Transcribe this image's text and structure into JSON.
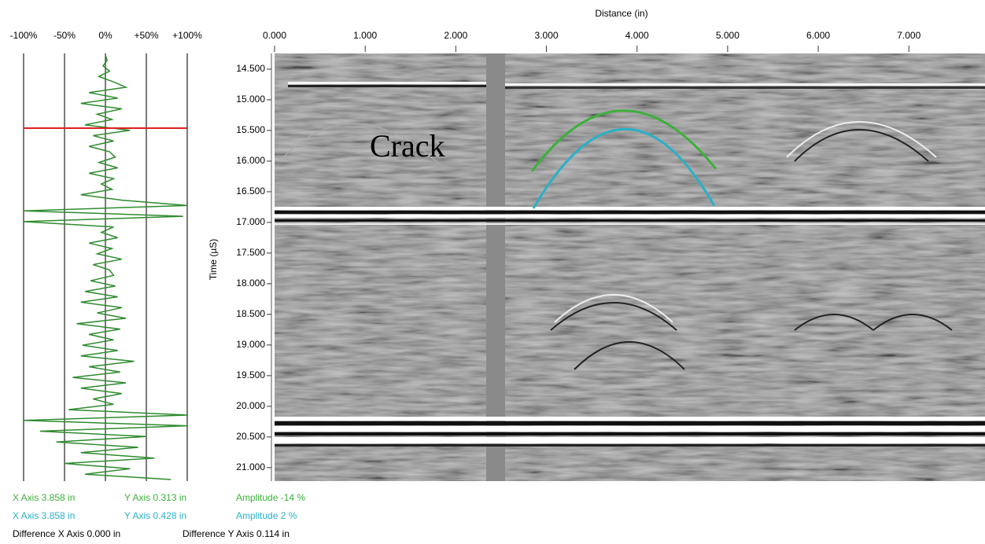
{
  "waveform": {
    "xticks": [
      {
        "value": -100,
        "label": "-100%"
      },
      {
        "value": -50,
        "label": "-50%"
      },
      {
        "value": 0,
        "label": "0%"
      },
      {
        "value": 50,
        "label": "+50%"
      },
      {
        "value": 100,
        "label": "+100%"
      }
    ],
    "xlim": [
      -100,
      100
    ],
    "color": "#2e8b2e",
    "values": [
      0,
      2,
      -3,
      5,
      -8,
      10,
      25,
      -20,
      15,
      -30,
      20,
      -10,
      8,
      -25,
      30,
      -15,
      10,
      -20,
      5,
      12,
      -8,
      15,
      -20,
      10,
      -5,
      8,
      -30,
      20,
      100,
      -100,
      95,
      -100,
      10,
      -5,
      15,
      -20,
      8,
      -10,
      20,
      -15,
      5,
      10,
      -18,
      12,
      -25,
      15,
      -30,
      20,
      -10,
      25,
      -35,
      18,
      -20,
      10,
      -28,
      15,
      -30,
      35,
      -20,
      18,
      -40,
      25,
      -30,
      20,
      -15,
      10,
      -45,
      100,
      -100,
      100,
      -80,
      50,
      -60,
      40,
      -30,
      60,
      -50,
      30,
      -25,
      80
    ]
  },
  "radargram": {
    "x_title": "Distance (in)",
    "y_title": "Time (µS)",
    "annotation": "Crack",
    "xlim": [
      0,
      7.84
    ],
    "ylim": [
      14.244,
      21.22
    ],
    "xticks": [
      {
        "value": 0,
        "label": "0.000"
      },
      {
        "value": 1,
        "label": "1.000"
      },
      {
        "value": 2,
        "label": "2.000"
      },
      {
        "value": 3,
        "label": "3.000"
      },
      {
        "value": 4,
        "label": "4.000"
      },
      {
        "value": 5,
        "label": "5.000"
      },
      {
        "value": 6,
        "label": "6.000"
      },
      {
        "value": 7,
        "label": "7.000"
      }
    ],
    "yticks": [
      {
        "value": 14.5,
        "label": "14.500"
      },
      {
        "value": 15,
        "label": "15.000"
      },
      {
        "value": 15.5,
        "label": "15.500"
      },
      {
        "value": 16,
        "label": "16.000"
      },
      {
        "value": 16.5,
        "label": "16.500"
      },
      {
        "value": 17,
        "label": "17.000"
      },
      {
        "value": 17.5,
        "label": "17.500"
      },
      {
        "value": 18,
        "label": "18.000"
      },
      {
        "value": 18.5,
        "label": "18.500"
      },
      {
        "value": 19,
        "label": "19.000"
      },
      {
        "value": 19.5,
        "label": "19.500"
      },
      {
        "value": 20,
        "label": "20.000"
      },
      {
        "value": 20.5,
        "label": "20.500"
      },
      {
        "value": 21,
        "label": "21.000"
      }
    ]
  },
  "readouts": [
    {
      "color": "#3cb03c",
      "items": [
        "X Axis  3.858 in",
        "Y Axis  0.313 in",
        "Amplitude  -14 %"
      ]
    },
    {
      "color": "#2ab0c8",
      "items": [
        "X Axis  3.858 in",
        "Y Axis  0.428 in",
        "Amplitude  2 %"
      ]
    },
    {
      "color": "#000000",
      "items": [
        "Difference X Axis  0.000 in",
        "Difference Y Axis 0.114 in"
      ]
    }
  ]
}
